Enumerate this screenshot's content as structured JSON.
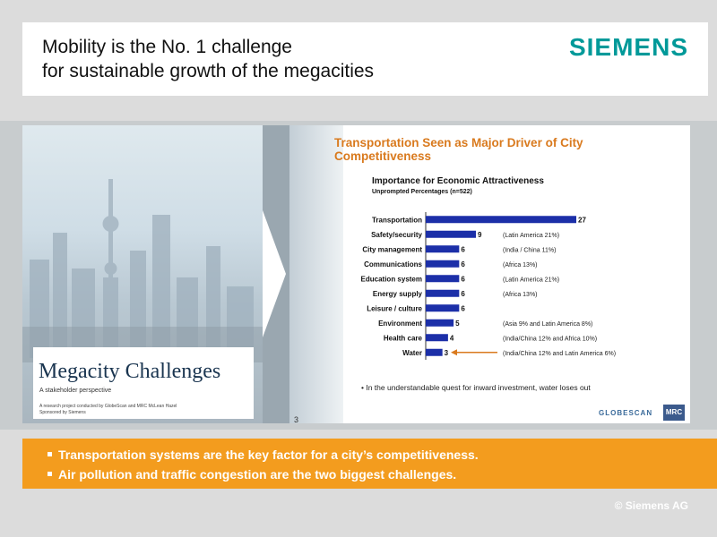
{
  "header": {
    "title_line1": "Mobility is the No. 1 challenge",
    "title_line2": "for sustainable growth of the megacities",
    "logo": "SIEMENS"
  },
  "cover": {
    "title": "Megacity Challenges",
    "subtitle": "A stakeholder perspective",
    "note_line1": "A research project conducted by GlobeScan and MRC McLean Hazel",
    "note_line2": "Sponsored by Siemens"
  },
  "slide": {
    "title": "Transportation Seen as Major Driver of City Competitiveness",
    "chart_title": "Importance for Economic Attractiveness",
    "chart_subtitle": "Unprompted Percentages (n=522)",
    "note": "• In the understandable quest for inward investment, water loses out",
    "page": "3",
    "globescan": "GLOBESCAN",
    "mrc": "MRC",
    "accent_color": "#d97a1e",
    "bar_color": "#1c2fa8"
  },
  "chart_data": {
    "type": "bar",
    "orientation": "horizontal",
    "categories": [
      "Transportation",
      "Safety/security",
      "City management",
      "Communications",
      "Education system",
      "Energy supply",
      "Leisure / culture",
      "Environment",
      "Health care",
      "Water"
    ],
    "values": [
      27,
      9,
      6,
      6,
      6,
      6,
      6,
      5,
      4,
      3
    ],
    "annotations": [
      "",
      "(Latin America 21%)",
      "(India / China 11%)",
      "(Africa 13%)",
      "(Latin America 21%)",
      "(Africa 13%)",
      "",
      "(Asia 9% and Latin America 8%)",
      "(India/China 12% and Africa 10%)",
      "(India/China 12% and Latin America 6%)"
    ],
    "highlight": "Water"
  },
  "callout": {
    "bullet1": "Transportation systems are the key factor for a city’s competitiveness.",
    "bullet2": "Air pollution and traffic congestion are the two biggest challenges."
  },
  "footer": {
    "copyright": "© Siemens AG"
  }
}
